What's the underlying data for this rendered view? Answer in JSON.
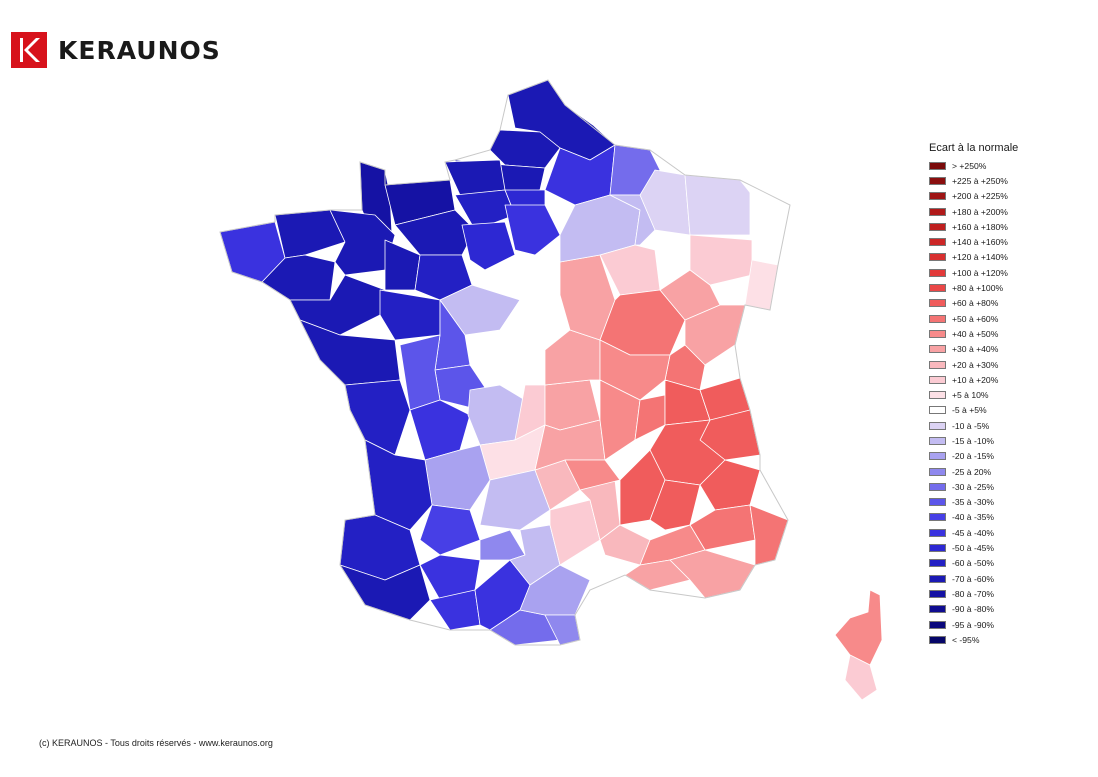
{
  "brand": {
    "name": "KERAUNOS",
    "logo_letter": "K",
    "color": "#d7121b"
  },
  "legend": {
    "title": "Ecart à la normale",
    "items": [
      {
        "label": "> +250%",
        "color": "#7a0a0a"
      },
      {
        "label": "+225 à +250%",
        "color": "#8a0e0e"
      },
      {
        "label": "+200 à +225%",
        "color": "#9e1414"
      },
      {
        "label": "+180 à +200%",
        "color": "#b01919"
      },
      {
        "label": "+160 à +180%",
        "color": "#bf1f1f"
      },
      {
        "label": "+140 à +160%",
        "color": "#cc2626"
      },
      {
        "label": "+120 à +140%",
        "color": "#d82f2f"
      },
      {
        "label": "+100 à +120%",
        "color": "#e23a3a"
      },
      {
        "label": "+80 à +100%",
        "color": "#ea4747"
      },
      {
        "label": "+60 à +80%",
        "color": "#f05c5c"
      },
      {
        "label": "+50 à +60%",
        "color": "#f47474"
      },
      {
        "label": "+40 à +50%",
        "color": "#f78a8a"
      },
      {
        "label": "+30 à +40%",
        "color": "#f8a2a4"
      },
      {
        "label": "+20 à +30%",
        "color": "#f9b8bd"
      },
      {
        "label": "+10 à +20%",
        "color": "#fbcbd3"
      },
      {
        "label": "+5 à 10%",
        "color": "#fde0e6"
      },
      {
        "label": "-5 à +5%",
        "color": "#ffffff"
      },
      {
        "label": "-10 à -5%",
        "color": "#dcd3f4"
      },
      {
        "label": "-15 à -10%",
        "color": "#c3bcf2"
      },
      {
        "label": "-20 à -15%",
        "color": "#a9a2f0"
      },
      {
        "label": "-25 à 20%",
        "color": "#8f88ee"
      },
      {
        "label": "-30 à -25%",
        "color": "#746cec"
      },
      {
        "label": "-35 à -30%",
        "color": "#5c55ea"
      },
      {
        "label": "-40 à -35%",
        "color": "#473fe6"
      },
      {
        "label": "-45 à -40%",
        "color": "#3a32df"
      },
      {
        "label": "-50 à -45%",
        "color": "#2d28d3"
      },
      {
        "label": "-60 à -50%",
        "color": "#2320c4"
      },
      {
        "label": "-70 à -60%",
        "color": "#1b19b4"
      },
      {
        "label": "-80 à -70%",
        "color": "#1512a4"
      },
      {
        "label": "-90 à -80%",
        "color": "#0f0c90"
      },
      {
        "label": "-95 à -90%",
        "color": "#0a087c"
      },
      {
        "label": "< -95%",
        "color": "#060568"
      }
    ]
  },
  "footer": {
    "copyright": "(c) KERAUNOS - Tous droits réservés - www.keraunos.org"
  }
}
